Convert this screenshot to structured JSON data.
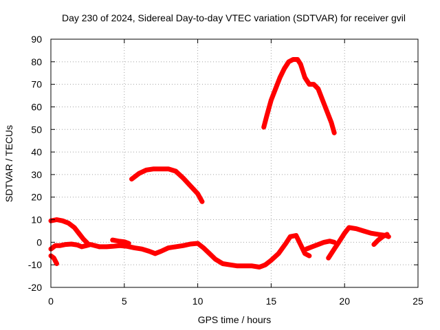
{
  "chart_data": {
    "type": "line",
    "title": "Day 230 of 2024, Sidereal Day-to-day VTEC variation (SDTVAR) for receiver gvil",
    "xlabel": "GPS time / hours",
    "ylabel": "SDTVAR / TECUs",
    "xlim": [
      0,
      25
    ],
    "ylim": [
      -20,
      90
    ],
    "xticks": [
      0,
      5,
      10,
      15,
      20,
      25
    ],
    "yticks": [
      -20,
      -10,
      0,
      10,
      20,
      30,
      40,
      50,
      60,
      70,
      80,
      90
    ],
    "grid": true,
    "color": "#ff0000",
    "series": [
      {
        "name": "track-1",
        "x": [
          0.0,
          0.3,
          0.6,
          1.0,
          1.4,
          1.8,
          2.1,
          2.4,
          2.7,
          3.0,
          3.3
        ],
        "y": [
          -3,
          -1.5,
          -1.5,
          -1,
          -0.8,
          -1.2,
          -2,
          -1.5,
          -1,
          -1.5,
          -2
        ]
      },
      {
        "name": "track-2",
        "x": [
          0.0,
          0.4,
          0.8,
          1.2,
          1.6,
          1.9,
          2.2,
          2.5
        ],
        "y": [
          9.5,
          10,
          9.5,
          8.5,
          6.5,
          4,
          1.5,
          -0.5
        ]
      },
      {
        "name": "track-3",
        "x": [
          0.0,
          0.2,
          0.4
        ],
        "y": [
          -6,
          -7,
          -9.5
        ]
      },
      {
        "name": "track-4",
        "x": [
          3.3,
          3.8,
          4.2,
          4.7,
          5.2,
          5.7,
          6.2,
          6.7,
          7.1
        ],
        "y": [
          -2,
          -2,
          -1.8,
          -1.5,
          -1.8,
          -2.5,
          -3,
          -4,
          -5
        ]
      },
      {
        "name": "track-5",
        "x": [
          4.2,
          4.6,
          5.0,
          5.3
        ],
        "y": [
          1,
          0.5,
          0.2,
          -0.5
        ]
      },
      {
        "name": "track-6",
        "x": [
          7.1,
          7.5,
          8.0,
          8.5,
          9.0,
          9.5,
          10.0,
          10.4,
          10.8,
          11.2,
          11.7,
          12.2,
          12.7,
          13.2,
          13.7,
          14.2,
          14.6,
          15.0,
          15.5,
          16.0,
          16.3,
          16.7,
          17.0,
          17.3,
          17.6
        ],
        "y": [
          -5,
          -4,
          -2.5,
          -2,
          -1.5,
          -0.8,
          -0.5,
          -2.5,
          -5,
          -7.5,
          -9.5,
          -10,
          -10.5,
          -10.5,
          -10.5,
          -11,
          -10,
          -8,
          -5,
          -0.5,
          2.5,
          3,
          -1,
          -5,
          -6
        ]
      },
      {
        "name": "track-7",
        "x": [
          5.5,
          6.0,
          6.5,
          7.0,
          7.5,
          8.0,
          8.5,
          9.0,
          9.5,
          10.0,
          10.3
        ],
        "y": [
          28,
          30.5,
          32,
          32.5,
          32.5,
          32.5,
          31.5,
          28.5,
          25,
          21.5,
          18
        ]
      },
      {
        "name": "track-8",
        "x": [
          14.5,
          14.7,
          15.0,
          15.3,
          15.6,
          15.9,
          16.2,
          16.5,
          16.8,
          17.0,
          17.3,
          17.6,
          17.9,
          18.2,
          18.5,
          18.8,
          19.1,
          19.3
        ],
        "y": [
          51,
          56,
          63,
          68,
          73,
          77,
          80,
          81,
          81,
          79,
          73,
          70,
          70,
          68,
          63,
          58,
          53,
          48.5
        ]
      },
      {
        "name": "track-9",
        "x": [
          17.4,
          17.8,
          18.2,
          18.6,
          19.0,
          19.3
        ],
        "y": [
          -3,
          -2,
          -1,
          0,
          0.5,
          0
        ]
      },
      {
        "name": "track-10",
        "x": [
          18.9,
          19.3,
          19.6,
          20.0,
          20.3,
          20.8,
          21.3,
          21.8,
          22.3,
          22.8,
          23.0
        ],
        "y": [
          -7,
          -3,
          0,
          4,
          6.5,
          6,
          5,
          4,
          3.5,
          3,
          2.5
        ]
      },
      {
        "name": "track-11",
        "x": [
          22.0,
          22.3,
          22.6,
          22.9
        ],
        "y": [
          -1,
          1,
          2.5,
          3.5
        ]
      }
    ]
  }
}
